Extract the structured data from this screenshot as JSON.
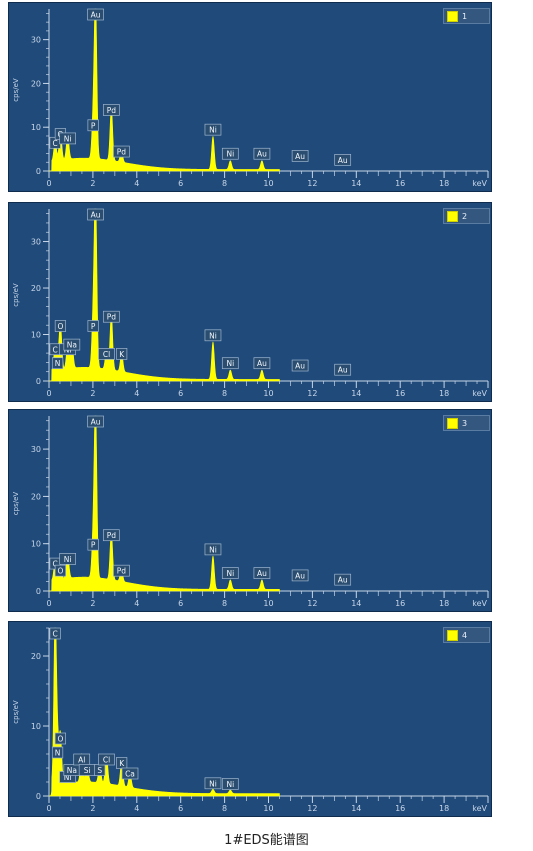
{
  "caption": "1#EDS能谱图",
  "axis": {
    "xlabel": "keV",
    "ylabel": "cps/eV",
    "xticks": [
      "0",
      "2",
      "4",
      "6",
      "8",
      "10",
      "12",
      "14",
      "16",
      "18"
    ]
  },
  "colors": {
    "panel": "#1f4a7a",
    "spectrum": "#ffff00",
    "axis": "#c9d6e8",
    "label_bg": "#2a4d70"
  },
  "chart_data": [
    {
      "type": "area",
      "legend": "1",
      "xlim": [
        0,
        20
      ],
      "ylim": [
        0,
        37
      ],
      "yticks": [
        0,
        10,
        20,
        30
      ],
      "peaks": [
        {
          "x": 0.28,
          "y": 4.5,
          "label": "C"
        },
        {
          "x": 0.52,
          "y": 6.5,
          "label": "O"
        },
        {
          "x": 0.85,
          "y": 5.5,
          "label": "Ni"
        },
        {
          "x": 2.01,
          "y": 8.5,
          "label": "P"
        },
        {
          "x": 2.12,
          "y": 36,
          "label": "Au"
        },
        {
          "x": 2.84,
          "y": 12,
          "label": "Pd"
        },
        {
          "x": 3.3,
          "y": 2.5,
          "label": "Pd"
        },
        {
          "x": 7.47,
          "y": 7.5,
          "label": "Ni"
        },
        {
          "x": 8.26,
          "y": 2,
          "label": "Ni"
        },
        {
          "x": 9.7,
          "y": 2,
          "label": "Au"
        },
        {
          "x": 11.44,
          "y": 1.5,
          "label": "Au"
        },
        {
          "x": 13.38,
          "y": 0.6,
          "label": "Au"
        }
      ]
    },
    {
      "type": "area",
      "legend": "2",
      "xlim": [
        0,
        20
      ],
      "ylim": [
        0,
        37
      ],
      "yticks": [
        0,
        10,
        20,
        30
      ],
      "peaks": [
        {
          "x": 0.28,
          "y": 5,
          "label": "C"
        },
        {
          "x": 0.39,
          "y": 2,
          "label": "N"
        },
        {
          "x": 0.52,
          "y": 10,
          "label": "O"
        },
        {
          "x": 0.85,
          "y": 5,
          "label": "Ni"
        },
        {
          "x": 1.04,
          "y": 6,
          "label": "Na"
        },
        {
          "x": 2.01,
          "y": 10,
          "label": "P"
        },
        {
          "x": 2.12,
          "y": 37,
          "label": "Au"
        },
        {
          "x": 2.62,
          "y": 4,
          "label": "Cl"
        },
        {
          "x": 2.84,
          "y": 12,
          "label": "Pd"
        },
        {
          "x": 3.31,
          "y": 4,
          "label": "K"
        },
        {
          "x": 7.47,
          "y": 8,
          "label": "Ni"
        },
        {
          "x": 8.26,
          "y": 2,
          "label": "Ni"
        },
        {
          "x": 9.7,
          "y": 2,
          "label": "Au"
        },
        {
          "x": 11.44,
          "y": 1.5,
          "label": "Au"
        },
        {
          "x": 13.38,
          "y": 0.6,
          "label": "Au"
        }
      ]
    },
    {
      "type": "area",
      "legend": "3",
      "xlim": [
        0,
        20
      ],
      "ylim": [
        0,
        37
      ],
      "yticks": [
        0,
        10,
        20,
        30
      ],
      "peaks": [
        {
          "x": 0.28,
          "y": 4,
          "label": "C"
        },
        {
          "x": 0.52,
          "y": 2.5,
          "label": "O"
        },
        {
          "x": 0.85,
          "y": 5,
          "label": "Ni"
        },
        {
          "x": 2.01,
          "y": 8,
          "label": "P"
        },
        {
          "x": 2.12,
          "y": 36,
          "label": "Au"
        },
        {
          "x": 2.84,
          "y": 10,
          "label": "Pd"
        },
        {
          "x": 3.3,
          "y": 2.5,
          "label": "Pd"
        },
        {
          "x": 7.47,
          "y": 7,
          "label": "Ni"
        },
        {
          "x": 8.26,
          "y": 2,
          "label": "Ni"
        },
        {
          "x": 9.7,
          "y": 2,
          "label": "Au"
        },
        {
          "x": 11.44,
          "y": 1.5,
          "label": "Au"
        },
        {
          "x": 13.38,
          "y": 0.6,
          "label": "Au"
        }
      ]
    },
    {
      "type": "area",
      "legend": "4",
      "xlim": [
        0,
        20
      ],
      "ylim": [
        0,
        24
      ],
      "yticks": [
        0,
        10,
        20
      ],
      "peaks": [
        {
          "x": 0.28,
          "y": 24,
          "label": "C"
        },
        {
          "x": 0.39,
          "y": 5,
          "label": "N"
        },
        {
          "x": 0.52,
          "y": 7,
          "label": "O"
        },
        {
          "x": 0.85,
          "y": 1.5,
          "label": "Ni"
        },
        {
          "x": 1.04,
          "y": 2.5,
          "label": "Na"
        },
        {
          "x": 1.49,
          "y": 4,
          "label": "Al"
        },
        {
          "x": 1.74,
          "y": 2.5,
          "label": "Si"
        },
        {
          "x": 2.31,
          "y": 2.5,
          "label": "S"
        },
        {
          "x": 2.62,
          "y": 4,
          "label": "Cl"
        },
        {
          "x": 3.31,
          "y": 3.5,
          "label": "K"
        },
        {
          "x": 3.69,
          "y": 2,
          "label": "Ca"
        },
        {
          "x": 7.47,
          "y": 0.6,
          "label": "Ni"
        },
        {
          "x": 8.26,
          "y": 0.5,
          "label": "Ni"
        }
      ]
    }
  ]
}
